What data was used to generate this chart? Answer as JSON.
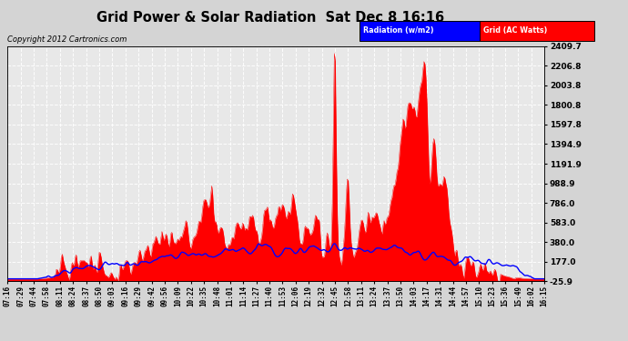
{
  "title": "Grid Power & Solar Radiation  Sat Dec 8 16:16",
  "copyright": "Copyright 2012 Cartronics.com",
  "legend_radiation": "Radiation (w/m2)",
  "legend_grid": "Grid (AC Watts)",
  "yticks": [
    -25.9,
    177.0,
    380.0,
    583.0,
    786.0,
    988.9,
    1191.9,
    1394.9,
    1597.8,
    1800.8,
    2003.8,
    2206.8,
    2409.7
  ],
  "ymin": -25.9,
  "ymax": 2409.7,
  "bg_color": "#d4d4d4",
  "plot_bg": "#e8e8e8",
  "red_color": "#ff0000",
  "blue_color": "#0000ff",
  "x_labels": [
    "07:16",
    "07:29",
    "07:44",
    "07:58",
    "08:11",
    "08:24",
    "08:37",
    "08:50",
    "09:03",
    "09:16",
    "09:29",
    "09:42",
    "09:56",
    "10:09",
    "10:22",
    "10:35",
    "10:48",
    "11:01",
    "11:14",
    "11:27",
    "11:40",
    "11:53",
    "12:06",
    "12:19",
    "12:32",
    "12:45",
    "12:58",
    "13:11",
    "13:24",
    "13:37",
    "13:50",
    "14:03",
    "14:17",
    "14:31",
    "14:44",
    "14:57",
    "15:10",
    "15:23",
    "15:36",
    "15:49",
    "16:02",
    "16:15"
  ]
}
